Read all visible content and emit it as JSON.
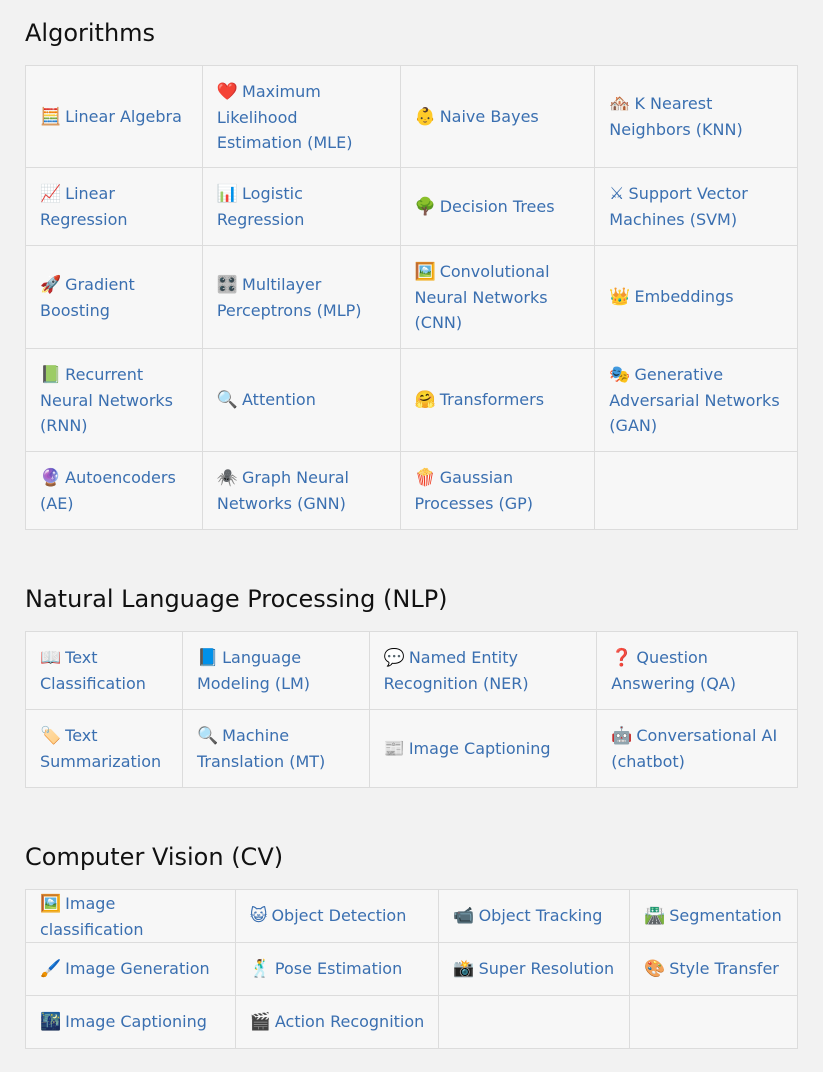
{
  "sections": {
    "algorithms": {
      "title": "Algorithms",
      "rows": [
        [
          {
            "icon": "🧮",
            "label": "Linear Algebra"
          },
          {
            "icon": "❤️",
            "label": "Maximum Likelihood Estimation (MLE)"
          },
          {
            "icon": "👶",
            "label": "Naive Bayes"
          },
          {
            "icon": "🏘️",
            "label": "K Nearest Neighbors (KNN)"
          }
        ],
        [
          {
            "icon": "📈",
            "label": "Linear Regression"
          },
          {
            "icon": "📊",
            "label": "Logistic Regression"
          },
          {
            "icon": "🌳",
            "label": "Decision Trees"
          },
          {
            "icon": "⚔",
            "label": "Support Vector Machines (SVM)"
          }
        ],
        [
          {
            "icon": "🚀",
            "label": "Gradient Boosting"
          },
          {
            "icon": "🎛️",
            "label": "Multilayer Perceptrons (MLP)"
          },
          {
            "icon": "🖼️",
            "label": "Convolutional Neural Networks (CNN)"
          },
          {
            "icon": "👑",
            "label": "Embeddings"
          }
        ],
        [
          {
            "icon": "📗",
            "label": "Recurrent Neural Networks (RNN)"
          },
          {
            "icon": "🔍",
            "label": "Attention"
          },
          {
            "icon": "🤗",
            "label": "Transformers"
          },
          {
            "icon": "🎭",
            "label": "Generative Adversarial Networks (GAN)"
          }
        ],
        [
          {
            "icon": "🔮",
            "label": "Autoencoders (AE)"
          },
          {
            "icon": "🕷️",
            "label": "Graph Neural Networks (GNN)"
          },
          {
            "icon": "🍿",
            "label": "Gaussian Processes (GP)"
          },
          {
            "icon": "",
            "label": ""
          }
        ]
      ]
    },
    "nlp": {
      "title": "Natural Language Processing (NLP)",
      "rows": [
        [
          {
            "icon": "📖",
            "label": "Text Classification"
          },
          {
            "icon": "📘",
            "label": "Language Modeling (LM)"
          },
          {
            "icon": "💬",
            "label": "Named Entity Recognition (NER)"
          },
          {
            "icon": "❓",
            "label": "Question Answering (QA)"
          }
        ],
        [
          {
            "icon": "🏷️",
            "label": "Text Summarization"
          },
          {
            "icon": "🔍",
            "label": "Machine Translation (MT)"
          },
          {
            "icon": "📰",
            "label": "Image Captioning"
          },
          {
            "icon": "🤖",
            "label": "Conversational AI (chatbot)"
          }
        ]
      ]
    },
    "cv": {
      "title": "Computer Vision (CV)",
      "rows": [
        [
          {
            "icon": "🖼️",
            "label": "Image classification"
          },
          {
            "icon": "😺",
            "label": "Object Detection"
          },
          {
            "icon": "📹",
            "label": "Object Tracking"
          },
          {
            "icon": "🛣️",
            "label": "Segmentation"
          }
        ],
        [
          {
            "icon": "🖌️",
            "label": "Image Generation"
          },
          {
            "icon": "🕺",
            "label": "Pose Estimation"
          },
          {
            "icon": "📸",
            "label": "Super Resolution"
          },
          {
            "icon": "🎨",
            "label": "Style Transfer"
          }
        ],
        [
          {
            "icon": "🌃",
            "label": "Image Captioning"
          },
          {
            "icon": "🎬",
            "label": "Action Recognition"
          },
          {
            "icon": "",
            "label": ""
          },
          {
            "icon": "",
            "label": ""
          }
        ]
      ]
    }
  }
}
